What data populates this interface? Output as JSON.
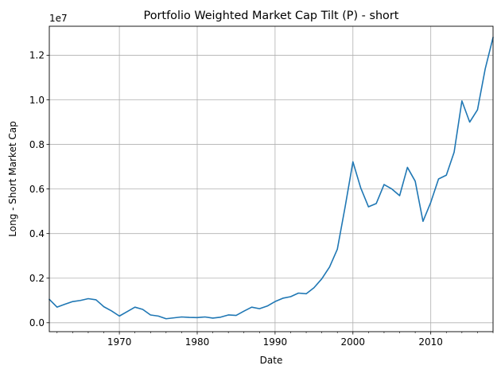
{
  "chart_data": {
    "type": "line",
    "title": "Portfolio Weighted Market Cap Tilt (P) - short",
    "xlabel": "Date",
    "ylabel": "Long - Short Market Cap",
    "y_multiplier_label": "1e7",
    "xlim": [
      1961,
      2018
    ],
    "ylim": [
      -0.04,
      1.33
    ],
    "x_ticks": [
      1970,
      1980,
      1990,
      2000,
      2010
    ],
    "x_tick_labels": [
      "1970",
      "1980",
      "1990",
      "2000",
      "2010"
    ],
    "x_minor_step": 2,
    "y_ticks": [
      0.0,
      0.2,
      0.4,
      0.6,
      0.8,
      1.0,
      1.2
    ],
    "y_tick_labels": [
      "0.0",
      "0.2",
      "0.4",
      "0.6",
      "0.8",
      "1.0",
      "1.2"
    ],
    "grid": true,
    "line_color": "#1f77b4",
    "series": [
      {
        "x": [
          1961,
          1962,
          1963,
          1964,
          1965,
          1966,
          1967,
          1968,
          1969,
          1970,
          1971,
          1972,
          1973,
          1974,
          1975,
          1976,
          1977,
          1978,
          1979,
          1980,
          1981,
          1982,
          1983,
          1984,
          1985,
          1986,
          1987,
          1988,
          1989,
          1990,
          1991,
          1992,
          1993,
          1994,
          1995,
          1996,
          1997,
          1998,
          1999,
          2000,
          2001,
          2002,
          2003,
          2004,
          2005,
          2006,
          2007,
          2008,
          2009,
          2010,
          2011,
          2012,
          2013,
          2014,
          2015,
          2016,
          2017,
          2018
        ],
        "y": [
          0.105,
          0.07,
          0.083,
          0.095,
          0.1,
          0.108,
          0.103,
          0.072,
          0.053,
          0.03,
          0.05,
          0.07,
          0.06,
          0.035,
          0.03,
          0.018,
          0.022,
          0.026,
          0.024,
          0.023,
          0.026,
          0.021,
          0.025,
          0.035,
          0.033,
          0.052,
          0.07,
          0.063,
          0.075,
          0.095,
          0.11,
          0.117,
          0.133,
          0.13,
          0.157,
          0.197,
          0.25,
          0.33,
          0.52,
          0.722,
          0.605,
          0.52,
          0.535,
          0.62,
          0.6,
          0.57,
          0.697,
          0.635,
          0.455,
          0.54,
          0.645,
          0.662,
          0.765,
          0.995,
          0.9,
          0.955,
          1.14,
          1.28
        ]
      }
    ]
  }
}
